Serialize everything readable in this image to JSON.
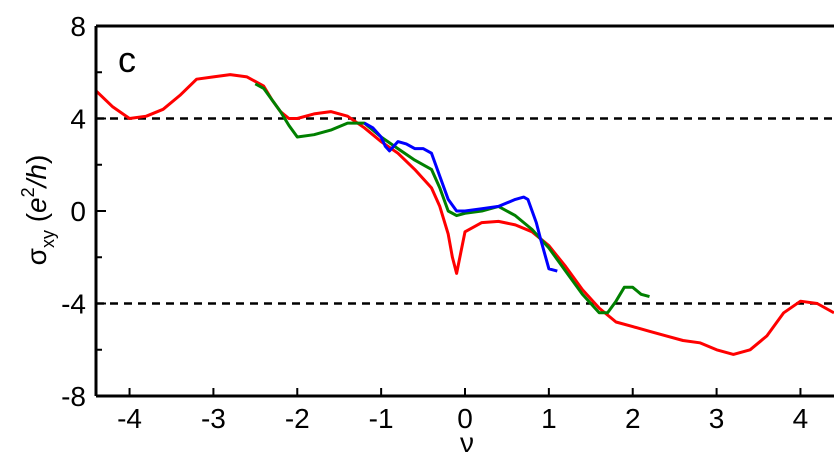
{
  "chart_data": {
    "type": "line",
    "panel_label": "c",
    "xlabel": "ν",
    "ylabel": {
      "symbol": "σ",
      "subscript": "xy",
      "unit_open": " (",
      "unit_e": "e",
      "unit_sup": "2",
      "unit_h": "/h",
      "unit_close": ")"
    },
    "xlim": [
      -4.4,
      4.4
    ],
    "ylim": [
      -8,
      8
    ],
    "x_ticks": [
      {
        "value": -4,
        "label": "-4"
      },
      {
        "value": -3,
        "label": "-3"
      },
      {
        "value": -2,
        "label": "-2"
      },
      {
        "value": -1,
        "label": "-1"
      },
      {
        "value": 0,
        "label": "0"
      },
      {
        "value": 1,
        "label": "1"
      },
      {
        "value": 2,
        "label": "2"
      },
      {
        "value": 3,
        "label": "3"
      },
      {
        "value": 4,
        "label": "4"
      }
    ],
    "y_ticks": [
      {
        "value": -8,
        "label": "-8"
      },
      {
        "value": -4,
        "label": "-4"
      },
      {
        "value": 0,
        "label": "0"
      },
      {
        "value": 4,
        "label": "4"
      },
      {
        "value": 8,
        "label": "8"
      }
    ],
    "y_minor_ticks": [
      -6,
      -2,
      2,
      6
    ],
    "reference_lines": [
      4,
      -4
    ],
    "grid": false,
    "series": [
      {
        "color": "#ff0000",
        "x": [
          -4.4,
          -4.2,
          -4.0,
          -3.8,
          -3.6,
          -3.4,
          -3.2,
          -3.0,
          -2.8,
          -2.6,
          -2.4,
          -2.3,
          -2.2,
          -2.1,
          -2.0,
          -1.8,
          -1.6,
          -1.4,
          -1.2,
          -1.0,
          -0.8,
          -0.6,
          -0.4,
          -0.3,
          -0.2,
          -0.15,
          -0.1,
          -0.05,
          0.0,
          0.2,
          0.4,
          0.6,
          0.8,
          1.0,
          1.2,
          1.4,
          1.6,
          1.8,
          2.0,
          2.2,
          2.4,
          2.6,
          2.8,
          3.0,
          3.2,
          3.4,
          3.6,
          3.8,
          4.0,
          4.2,
          4.4
        ],
        "y": [
          5.2,
          4.5,
          4.0,
          4.1,
          4.4,
          5.0,
          5.7,
          5.8,
          5.9,
          5.8,
          5.4,
          4.8,
          4.3,
          4.0,
          4.0,
          4.2,
          4.3,
          4.1,
          3.6,
          3.0,
          2.5,
          1.8,
          1.0,
          0.2,
          -1.0,
          -2.0,
          -2.7,
          -1.8,
          -0.9,
          -0.5,
          -0.45,
          -0.6,
          -0.9,
          -1.5,
          -2.4,
          -3.4,
          -4.2,
          -4.8,
          -5.0,
          -5.2,
          -5.4,
          -5.6,
          -5.7,
          -6.0,
          -6.2,
          -6.0,
          -5.4,
          -4.4,
          -3.9,
          -4.0,
          -4.4
        ]
      },
      {
        "color": "#008000",
        "x": [
          -2.5,
          -2.4,
          -2.3,
          -2.2,
          -2.1,
          -2.0,
          -1.8,
          -1.6,
          -1.4,
          -1.2,
          -1.0,
          -0.8,
          -0.6,
          -0.4,
          -0.3,
          -0.2,
          -0.1,
          0.0,
          0.2,
          0.4,
          0.6,
          0.8,
          1.0,
          1.2,
          1.4,
          1.6,
          1.7,
          1.8,
          1.9,
          2.0,
          2.1,
          2.2
        ],
        "y": [
          5.5,
          5.3,
          4.8,
          4.3,
          3.7,
          3.2,
          3.3,
          3.5,
          3.8,
          3.8,
          3.2,
          2.7,
          2.2,
          1.8,
          1.0,
          0.0,
          -0.2,
          -0.1,
          0.0,
          0.2,
          -0.2,
          -0.8,
          -1.6,
          -2.6,
          -3.6,
          -4.4,
          -4.4,
          -3.9,
          -3.3,
          -3.3,
          -3.6,
          -3.7
        ]
      },
      {
        "color": "#0000ff",
        "x": [
          -1.2,
          -1.1,
          -1.0,
          -0.95,
          -0.9,
          -0.85,
          -0.8,
          -0.7,
          -0.6,
          -0.5,
          -0.4,
          -0.3,
          -0.2,
          -0.1,
          0.0,
          0.2,
          0.4,
          0.6,
          0.7,
          0.75,
          0.8,
          0.85,
          0.9,
          1.0,
          1.1
        ],
        "y": [
          3.8,
          3.6,
          3.2,
          2.8,
          2.6,
          2.8,
          3.0,
          2.9,
          2.7,
          2.7,
          2.5,
          1.5,
          0.5,
          0.0,
          0.0,
          0.1,
          0.2,
          0.5,
          0.6,
          0.5,
          0.0,
          -0.5,
          -1.2,
          -2.5,
          -2.6
        ]
      }
    ]
  }
}
